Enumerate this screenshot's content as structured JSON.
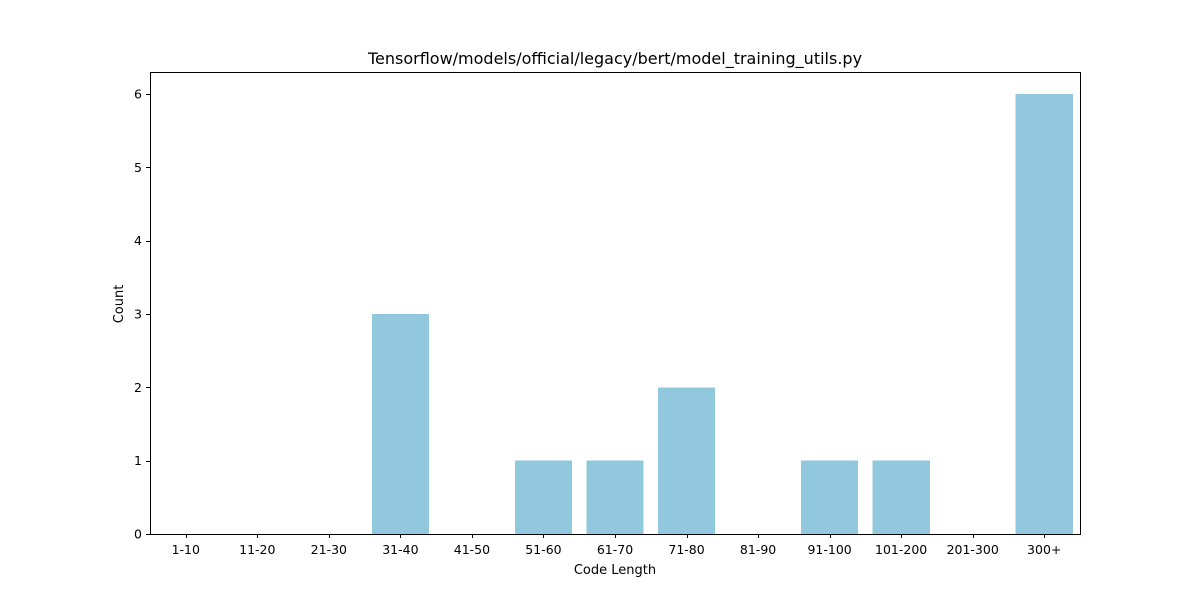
{
  "chart_data": {
    "type": "bar",
    "title": "Tensorflow/models/official/legacy/bert/model_training_utils.py",
    "xlabel": "Code Length",
    "ylabel": "Count",
    "categories": [
      "1-10",
      "11-20",
      "21-30",
      "31-40",
      "41-50",
      "51-60",
      "61-70",
      "71-80",
      "81-90",
      "91-100",
      "101-200",
      "201-300",
      "300+"
    ],
    "values": [
      0,
      0,
      0,
      3,
      0,
      1,
      1,
      2,
      0,
      1,
      1,
      0,
      6
    ],
    "ylim": [
      0,
      6.3
    ],
    "yticks": [
      0,
      1,
      2,
      3,
      4,
      5,
      6
    ],
    "bar_color": "#92C8DE",
    "grid": false,
    "legend": "none"
  }
}
